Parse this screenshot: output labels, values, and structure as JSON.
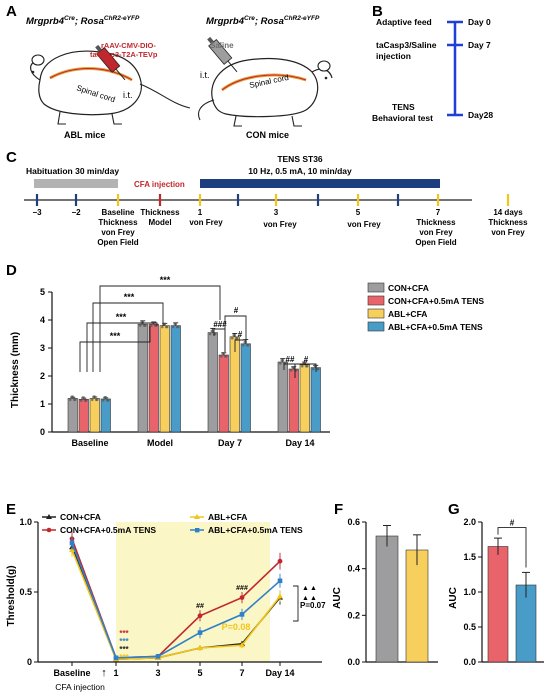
{
  "panelA": {
    "letter": "A",
    "left_title": "Mrgprb4",
    "left_title_sup1": "Cre",
    "left_title_mid": "; Rosa",
    "left_title_sup2": "ChR2-eYFP",
    "right_title": "Mrgprb4",
    "right_title_sup1": "Cre",
    "right_title_mid": "; Rosa",
    "right_title_sup2": "ChR2-eYFP",
    "virus_line1": "rAAV-CMV-DIO-",
    "virus_line2": "taCasp3-T2A-TEVp",
    "saline": "Saline",
    "it_left": "i.t.",
    "it_right": "i.t.",
    "spinal_left": "Spinal cord",
    "spinal_right": "Spinal cord",
    "abl_label": "ABL mice",
    "con_label": "CON mice",
    "colors": {
      "virus": "#c0282d",
      "saline": "#6e6e6e",
      "cord": "#e7a23a"
    }
  },
  "panelB": {
    "letter": "B",
    "events": [
      {
        "left": "Adaptive feed",
        "right": "Day 0"
      },
      {
        "left": "taCasp3/Saline",
        "left2": "injection",
        "right": "Day 7"
      },
      {
        "left": "TENS",
        "left2": "Behavioral test",
        "right": "Day28"
      }
    ],
    "color": "#1f3fd6"
  },
  "panelC": {
    "letter": "C",
    "habituation": "Habituation 30 min/day",
    "cfa": "CFA injection",
    "tens_title": "TENS ST36",
    "tens_params": "10 Hz, 0.5 mA, 10 min/day",
    "ticks": [
      "−3",
      "−2",
      "Baseline",
      "Thickness",
      "1",
      "3",
      "5",
      "7",
      "14 days"
    ],
    "below": [
      [
        "Thickness",
        "von Frey",
        "Open Field"
      ],
      [
        "Model"
      ],
      [
        "von Frey"
      ],
      [
        "von Frey"
      ],
      [
        "von Frey"
      ],
      [
        "Thickness",
        "von Frey",
        "Open Field"
      ],
      [
        "Thickness",
        "von Frey"
      ]
    ],
    "colors": {
      "hab": "#b3b3b3",
      "tens": "#1d3f80",
      "cfa": "#c0282d",
      "yellow": "#f2c51b",
      "navy": "#1d3f80"
    }
  },
  "chart_data": [
    {
      "id": "D",
      "type": "bar",
      "letter": "D",
      "ylabel": "Thickness (mm)",
      "ylim": [
        0,
        5
      ],
      "yticks": [
        "0",
        "1",
        "2",
        "3",
        "4",
        "5"
      ],
      "categories": [
        "Baseline",
        "Model",
        "Day 7",
        "Day 14"
      ],
      "series": [
        {
          "name": "CON+CFA",
          "color": "#9d9d9f",
          "values": [
            1.2,
            3.85,
            3.55,
            2.5
          ],
          "errors": [
            0.04,
            0.12,
            0.15,
            0.12
          ]
        },
        {
          "name": "CON+CFA+0.5mA TENS",
          "color": "#e8646a",
          "values": [
            1.17,
            3.85,
            2.75,
            2.25
          ],
          "errors": [
            0.04,
            0.08,
            0.08,
            0.08
          ]
        },
        {
          "name": "ABL+CFA",
          "color": "#f7cf5d",
          "values": [
            1.2,
            3.8,
            3.4,
            2.4
          ],
          "errors": [
            0.05,
            0.08,
            0.12,
            0.1
          ]
        },
        {
          "name": "ABL+CFA+0.5mA TENS",
          "color": "#4a9cc8",
          "values": [
            1.18,
            3.8,
            3.15,
            2.3
          ],
          "errors": [
            0.04,
            0.1,
            0.15,
            0.08
          ]
        }
      ],
      "annotations": [
        "***",
        "***",
        "***",
        "***",
        "###",
        "#",
        "#",
        "##",
        "#"
      ]
    },
    {
      "id": "E",
      "type": "line",
      "letter": "E",
      "ylabel": "Threshold(g)",
      "ylim": [
        0,
        1.0
      ],
      "yticks": [
        "0",
        "0.5",
        "1.0"
      ],
      "xticks": [
        "Baseline",
        "1",
        "3",
        "5",
        "7",
        "Day 14"
      ],
      "x_arrow_label": "↑",
      "x_note": "CFA injection",
      "series": [
        {
          "name": "CON+CFA",
          "color": "#222222",
          "values": [
            0.82,
            0.02,
            0.03,
            0.1,
            0.13,
            0.46
          ],
          "errors": [
            0.05,
            0.01,
            0.01,
            0.02,
            0.02,
            0.05
          ]
        },
        {
          "name": "CON+CFA+0.5mA TENS",
          "color": "#c0282d",
          "values": [
            0.88,
            0.03,
            0.04,
            0.33,
            0.46,
            0.72
          ],
          "errors": [
            0.06,
            0.01,
            0.01,
            0.04,
            0.04,
            0.06
          ]
        },
        {
          "name": "ABL+CFA",
          "color": "#f2c51b",
          "values": [
            0.8,
            0.02,
            0.03,
            0.1,
            0.12,
            0.47
          ],
          "errors": [
            0.05,
            0.01,
            0.01,
            0.02,
            0.02,
            0.04
          ]
        },
        {
          "name": "ABL+CFA+0.5mA TENS",
          "color": "#2f80c9",
          "values": [
            0.85,
            0.03,
            0.04,
            0.21,
            0.34,
            0.58
          ],
          "errors": [
            0.05,
            0.01,
            0.01,
            0.04,
            0.04,
            0.05
          ]
        }
      ],
      "stars": [
        "***",
        "***",
        "***",
        "***"
      ],
      "hash_labels": [
        "##",
        "###"
      ],
      "p_value": "P=0.08",
      "p_right": "P=0.07",
      "right_marks": [
        "▲",
        "▲",
        "▲",
        "▲"
      ],
      "shade": "#fbf6c6"
    },
    {
      "id": "F",
      "type": "bar",
      "letter": "F",
      "ylabel": "AUC",
      "ylim": [
        0,
        0.6
      ],
      "yticks": [
        "0.0",
        "0.2",
        "0.4",
        "0.6"
      ],
      "series": [
        {
          "color": "#9d9d9f",
          "value": 0.54,
          "error": 0.045
        },
        {
          "color": "#f7cf5d",
          "value": 0.48,
          "error": 0.065
        }
      ]
    },
    {
      "id": "G",
      "type": "bar",
      "letter": "G",
      "ylabel": "AUC",
      "ylim": [
        0,
        2.0
      ],
      "yticks": [
        "0.0",
        "0.5",
        "1.0",
        "1.5",
        "2.0"
      ],
      "annotation": "#",
      "series": [
        {
          "color": "#e8646a",
          "value": 1.65,
          "error": 0.12
        },
        {
          "color": "#4a9cc8",
          "value": 1.1,
          "error": 0.18
        }
      ]
    }
  ]
}
